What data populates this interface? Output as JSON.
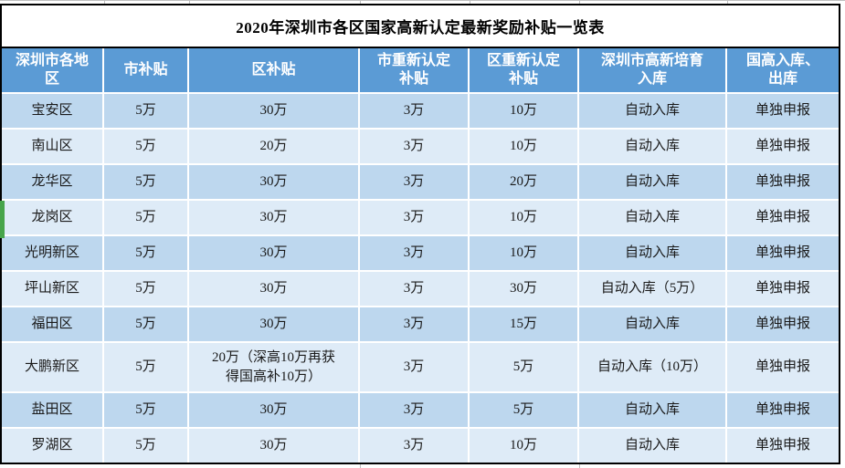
{
  "colors": {
    "header_bg": "#5B9BD5",
    "header_text": "#FFFFFF",
    "row_odd_bg": "#BDD7EE",
    "row_even_bg": "#DEEBF7",
    "body_text": "#1A1A1A",
    "table_border": "#000000",
    "cell_divider": "#FFFFFF",
    "gridline": "#BFBFBF",
    "highlight_marker": "#46A44A"
  },
  "table": {
    "title": "2020年深圳市各区国家高新认定最新奖励补贴一览表",
    "columns": [
      "深圳市各地\n区",
      "市补贴",
      "区补贴",
      "市重新认定\n补贴",
      "区重新认定\n补贴",
      "深圳市高新培育\n入库",
      "国高入库、\n出库"
    ],
    "rows": [
      {
        "district": "宝安区",
        "values": [
          "5万",
          "30万",
          "3万",
          "10万",
          "自动入库",
          "单独申报"
        ]
      },
      {
        "district": "南山区",
        "values": [
          "5万",
          "20万",
          "3万",
          "10万",
          "自动入库",
          "单独申报"
        ]
      },
      {
        "district": "龙华区",
        "values": [
          "5万",
          "30万",
          "3万",
          "20万",
          "自动入库",
          "单独申报"
        ]
      },
      {
        "district": "龙岗区",
        "values": [
          "5万",
          "30万",
          "3万",
          "10万",
          "自动入库",
          "单独申报"
        ]
      },
      {
        "district": "光明新区",
        "values": [
          "5万",
          "30万",
          "3万",
          "10万",
          "自动入库",
          "单独申报"
        ]
      },
      {
        "district": "坪山新区",
        "values": [
          "5万",
          "30万",
          "3万",
          "30万",
          "自动入库（5万）",
          "单独申报"
        ]
      },
      {
        "district": "福田区",
        "values": [
          "5万",
          "30万",
          "3万",
          "15万",
          "自动入库",
          "单独申报"
        ]
      },
      {
        "district": "大鹏新区",
        "values": [
          "5万",
          "20万（深高10万再获得国高补10万）",
          "3万",
          "5万",
          "自动入库（10万）",
          "单独申报"
        ]
      },
      {
        "district": "盐田区",
        "values": [
          "5万",
          "30万",
          "3万",
          "5万",
          "自动入库",
          "单独申报"
        ]
      },
      {
        "district": "罗湖区",
        "values": [
          "5万",
          "30万",
          "3万",
          "10万",
          "自动入库",
          "单独申报"
        ]
      }
    ],
    "highlighted_district": "龙岗区"
  }
}
